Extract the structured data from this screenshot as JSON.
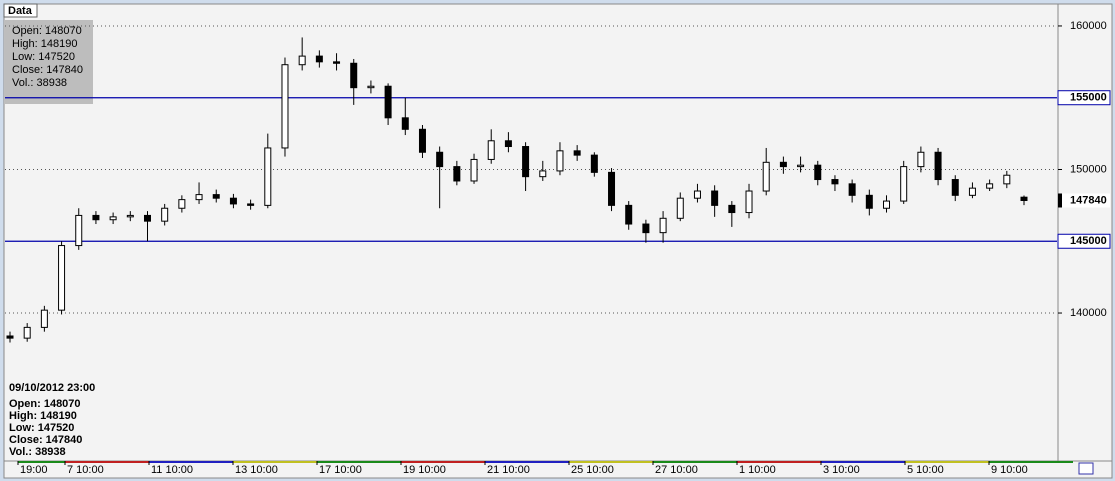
{
  "chart_data": {
    "type": "candlestick",
    "tab_label": "Data",
    "info_box": [
      "Open: 148070",
      "High: 148190",
      "Low: 147520",
      "Close: 147840",
      "Vol.: 38938"
    ],
    "status_date": "09/10/2012 23:00",
    "status_lines": [
      "Open: 148070",
      "High: 148190",
      "Low: 147520",
      "Close: 147840",
      "Vol.: 38938"
    ],
    "x_labels": [
      "19:00",
      "7 10:00",
      "11 10:00",
      "13 10:00",
      "17 10:00",
      "19 10:00",
      "21 10:00",
      "25 10:00",
      "27 10:00",
      "1 10:00",
      "3 10:00",
      "5 10:00",
      "9 10:00"
    ],
    "ylim": [
      129760,
      161460
    ],
    "yticks": [
      140000,
      150000,
      160000
    ],
    "grid": true,
    "levels": [
      {
        "value": 155000,
        "color": "#0000aa"
      },
      {
        "value": 145000,
        "color": "#0000aa"
      }
    ],
    "last_price": 147840,
    "candle_color": "#000000",
    "open": [
      138400,
      138250,
      139000,
      140200,
      144700,
      146800,
      146500,
      146700,
      146800,
      146400,
      147300,
      147900,
      148250,
      148000,
      147600,
      147500,
      151500,
      157300,
      157900,
      157500,
      157400,
      155700,
      155800,
      153600,
      152800,
      151200,
      150200,
      149200,
      150700,
      152000,
      151600,
      149500,
      149900,
      151300,
      151000,
      149800,
      147500,
      146200,
      145600,
      146600,
      148000,
      148500,
      147500,
      147000,
      148500,
      150500,
      150200,
      150300,
      149300,
      149000,
      148200,
      147300,
      147800,
      150200,
      151200,
      149300,
      148200,
      148700,
      149000,
      148070
    ],
    "high": [
      138700,
      139300,
      140500,
      145000,
      147300,
      147100,
      147000,
      147100,
      147100,
      147600,
      148200,
      149100,
      148600,
      148300,
      147900,
      152500,
      157800,
      159200,
      158300,
      158100,
      157700,
      156200,
      156000,
      155000,
      153100,
      151600,
      150600,
      151100,
      152800,
      152600,
      151900,
      150600,
      151900,
      151700,
      151200,
      150100,
      147800,
      146500,
      147100,
      148400,
      149000,
      148900,
      147800,
      149000,
      151500,
      150900,
      150900,
      150600,
      149600,
      149300,
      148600,
      148200,
      150600,
      151600,
      151500,
      149600,
      149100,
      149300,
      149900,
      148190
    ],
    "low": [
      137950,
      138000,
      138700,
      139900,
      144400,
      146200,
      146200,
      146400,
      145000,
      146100,
      147000,
      147600,
      147700,
      147300,
      147200,
      147300,
      150900,
      156900,
      157100,
      156900,
      154500,
      155300,
      153100,
      152400,
      150800,
      147300,
      148900,
      149000,
      150400,
      151200,
      148500,
      149200,
      149600,
      150600,
      149500,
      147100,
      145800,
      144900,
      144900,
      146400,
      147700,
      146700,
      146000,
      146600,
      148200,
      149700,
      149800,
      148900,
      148500,
      147700,
      146800,
      147000,
      147600,
      149800,
      148900,
      147800,
      148000,
      148500,
      148700,
      147520
    ],
    "close": [
      138250,
      139000,
      140200,
      144700,
      146800,
      146500,
      146700,
      146800,
      146400,
      147300,
      147900,
      148250,
      148000,
      147600,
      147500,
      151500,
      157300,
      157900,
      157500,
      157400,
      155700,
      155800,
      153600,
      152800,
      151200,
      150200,
      149200,
      150700,
      152000,
      151600,
      149500,
      149900,
      151300,
      151000,
      149800,
      147500,
      146200,
      145600,
      146600,
      148000,
      148500,
      147500,
      147000,
      148500,
      150500,
      150200,
      150300,
      149300,
      149000,
      148200,
      147300,
      147800,
      150200,
      151200,
      149300,
      148200,
      148700,
      149000,
      149600,
      147840
    ]
  }
}
